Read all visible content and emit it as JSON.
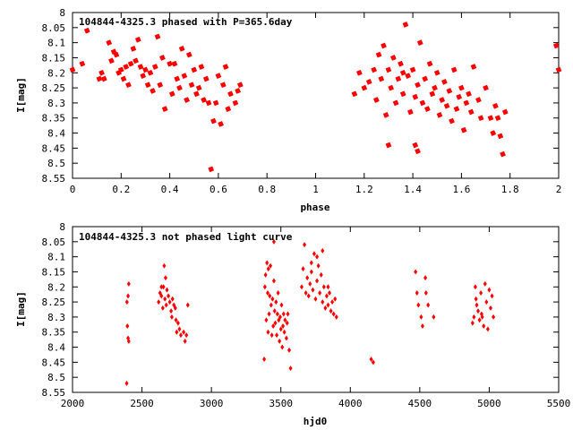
{
  "chart_data": [
    {
      "type": "scatter",
      "title": "104844-4325.3 phased with P=365.6day",
      "xlabel": "phase",
      "ylabel": "I[mag]",
      "xlim": [
        0,
        2
      ],
      "ylim": [
        8.0,
        8.55
      ],
      "y_inverted": true,
      "grid": false,
      "x_ticks": [
        0,
        0.2,
        0.4,
        0.6,
        0.8,
        1,
        1.2,
        1.4,
        1.6,
        1.8,
        2
      ],
      "x_tick_labels": [
        "0",
        "0.2",
        "0.4",
        "0.6",
        "0.8",
        "1",
        "1.2",
        "1.4",
        "1.6",
        "1.8",
        "2"
      ],
      "y_ticks": [
        8.0,
        8.05,
        8.1,
        8.15,
        8.2,
        8.25,
        8.3,
        8.35,
        8.4,
        8.45,
        8.5,
        8.55
      ],
      "y_tick_labels": [
        "8",
        "8.05",
        "8.1",
        "8.15",
        "8.2",
        "8.25",
        "8.3",
        "8.35",
        "8.4",
        "8.45",
        "8.5",
        "8.55"
      ],
      "marker_color": "#ff0000",
      "points": [
        [
          0.0,
          8.19
        ],
        [
          0.04,
          8.17
        ],
        [
          0.06,
          8.06
        ],
        [
          0.11,
          8.22
        ],
        [
          0.12,
          8.2
        ],
        [
          0.13,
          8.22
        ],
        [
          0.15,
          8.1
        ],
        [
          0.16,
          8.16
        ],
        [
          0.17,
          8.13
        ],
        [
          0.18,
          8.14
        ],
        [
          0.19,
          8.2
        ],
        [
          0.2,
          8.19
        ],
        [
          0.21,
          8.22
        ],
        [
          0.22,
          8.18
        ],
        [
          0.23,
          8.24
        ],
        [
          0.24,
          8.17
        ],
        [
          0.25,
          8.12
        ],
        [
          0.26,
          8.16
        ],
        [
          0.27,
          8.09
        ],
        [
          0.28,
          8.18
        ],
        [
          0.29,
          8.21
        ],
        [
          0.3,
          8.19
        ],
        [
          0.31,
          8.24
        ],
        [
          0.32,
          8.2
        ],
        [
          0.33,
          8.26
        ],
        [
          0.34,
          8.18
        ],
        [
          0.35,
          8.08
        ],
        [
          0.36,
          8.24
        ],
        [
          0.37,
          8.15
        ],
        [
          0.38,
          8.32
        ],
        [
          0.4,
          8.17
        ],
        [
          0.41,
          8.27
        ],
        [
          0.42,
          8.17
        ],
        [
          0.43,
          8.22
        ],
        [
          0.44,
          8.25
        ],
        [
          0.45,
          8.12
        ],
        [
          0.46,
          8.21
        ],
        [
          0.47,
          8.29
        ],
        [
          0.48,
          8.14
        ],
        [
          0.49,
          8.24
        ],
        [
          0.5,
          8.19
        ],
        [
          0.51,
          8.27
        ],
        [
          0.52,
          8.25
        ],
        [
          0.53,
          8.18
        ],
        [
          0.54,
          8.29
        ],
        [
          0.55,
          8.22
        ],
        [
          0.56,
          8.3
        ],
        [
          0.57,
          8.52
        ],
        [
          0.58,
          8.36
        ],
        [
          0.59,
          8.3
        ],
        [
          0.6,
          8.21
        ],
        [
          0.61,
          8.37
        ],
        [
          0.62,
          8.24
        ],
        [
          0.63,
          8.18
        ],
        [
          0.64,
          8.32
        ],
        [
          0.65,
          8.27
        ],
        [
          0.67,
          8.3
        ],
        [
          0.68,
          8.26
        ],
        [
          0.69,
          8.24
        ],
        [
          1.16,
          8.27
        ],
        [
          1.18,
          8.2
        ],
        [
          1.2,
          8.25
        ],
        [
          1.22,
          8.23
        ],
        [
          1.24,
          8.19
        ],
        [
          1.25,
          8.29
        ],
        [
          1.26,
          8.14
        ],
        [
          1.27,
          8.22
        ],
        [
          1.28,
          8.11
        ],
        [
          1.29,
          8.34
        ],
        [
          1.3,
          8.19
        ],
        [
          1.31,
          8.25
        ],
        [
          1.32,
          8.15
        ],
        [
          1.33,
          8.3
        ],
        [
          1.34,
          8.22
        ],
        [
          1.35,
          8.17
        ],
        [
          1.36,
          8.27
        ],
        [
          1.37,
          8.04
        ],
        [
          1.38,
          8.21
        ],
        [
          1.39,
          8.33
        ],
        [
          1.4,
          8.19
        ],
        [
          1.41,
          8.28
        ],
        [
          1.42,
          8.24
        ],
        [
          1.43,
          8.1
        ],
        [
          1.44,
          8.3
        ],
        [
          1.45,
          8.22
        ],
        [
          1.46,
          8.32
        ],
        [
          1.47,
          8.17
        ],
        [
          1.48,
          8.27
        ],
        [
          1.49,
          8.25
        ],
        [
          1.5,
          8.2
        ],
        [
          1.51,
          8.34
        ],
        [
          1.52,
          8.29
        ],
        [
          1.53,
          8.23
        ],
        [
          1.54,
          8.31
        ],
        [
          1.55,
          8.26
        ],
        [
          1.56,
          8.36
        ],
        [
          1.57,
          8.19
        ],
        [
          1.58,
          8.32
        ],
        [
          1.59,
          8.28
        ],
        [
          1.6,
          8.25
        ],
        [
          1.61,
          8.39
        ],
        [
          1.62,
          8.3
        ],
        [
          1.63,
          8.27
        ],
        [
          1.64,
          8.33
        ],
        [
          1.65,
          8.18
        ],
        [
          1.67,
          8.29
        ],
        [
          1.68,
          8.35
        ],
        [
          1.7,
          8.25
        ],
        [
          1.72,
          8.35
        ],
        [
          1.73,
          8.4
        ],
        [
          1.74,
          8.31
        ],
        [
          1.75,
          8.35
        ],
        [
          1.76,
          8.41
        ],
        [
          1.77,
          8.47
        ],
        [
          1.78,
          8.33
        ],
        [
          1.3,
          8.44
        ],
        [
          1.41,
          8.44
        ],
        [
          1.42,
          8.46
        ],
        [
          1.36,
          8.2
        ],
        [
          1.99,
          8.11
        ],
        [
          2.0,
          8.19
        ]
      ]
    },
    {
      "type": "scatter",
      "title": "104844-4325.3 not phased light curve",
      "xlabel": "hjd0",
      "ylabel": "I[mag]",
      "xlim": [
        2000,
        5500
      ],
      "ylim": [
        8.0,
        8.55
      ],
      "y_inverted": true,
      "grid": false,
      "x_ticks": [
        2000,
        2500,
        3000,
        3500,
        4000,
        4500,
        5000,
        5500
      ],
      "x_tick_labels": [
        "2000",
        "2500",
        "3000",
        "3500",
        "4000",
        "4500",
        "5000",
        "5500"
      ],
      "y_ticks": [
        8.0,
        8.05,
        8.1,
        8.15,
        8.2,
        8.25,
        8.3,
        8.35,
        8.4,
        8.45,
        8.5,
        8.55
      ],
      "y_tick_labels": [
        "8",
        "8.05",
        "8.1",
        "8.15",
        "8.2",
        "8.25",
        "8.3",
        "8.35",
        "8.4",
        "8.45",
        "8.5",
        "8.55"
      ],
      "marker_color": "#ff0000",
      "points": [
        [
          2390,
          8.52
        ],
        [
          2395,
          8.33
        ],
        [
          2400,
          8.37
        ],
        [
          2400,
          8.23
        ],
        [
          2405,
          8.19
        ],
        [
          2405,
          8.38
        ],
        [
          2392,
          8.25
        ],
        [
          2620,
          8.25
        ],
        [
          2630,
          8.22
        ],
        [
          2640,
          8.2
        ],
        [
          2650,
          8.27
        ],
        [
          2660,
          8.13
        ],
        [
          2665,
          8.24
        ],
        [
          2670,
          8.17
        ],
        [
          2675,
          8.26
        ],
        [
          2680,
          8.21
        ],
        [
          2690,
          8.23
        ],
        [
          2700,
          8.25
        ],
        [
          2710,
          8.28
        ],
        [
          2715,
          8.3
        ],
        [
          2720,
          8.24
        ],
        [
          2730,
          8.26
        ],
        [
          2740,
          8.27
        ],
        [
          2745,
          8.31
        ],
        [
          2750,
          8.35
        ],
        [
          2760,
          8.32
        ],
        [
          2770,
          8.34
        ],
        [
          2780,
          8.36
        ],
        [
          2800,
          8.35
        ],
        [
          2810,
          8.38
        ],
        [
          2820,
          8.36
        ],
        [
          2830,
          8.26
        ],
        [
          2640,
          8.23
        ],
        [
          2655,
          8.2
        ],
        [
          3380,
          8.44
        ],
        [
          3385,
          8.2
        ],
        [
          3390,
          8.16
        ],
        [
          3400,
          8.12
        ],
        [
          3405,
          8.22
        ],
        [
          3410,
          8.14
        ],
        [
          3415,
          8.29
        ],
        [
          3420,
          8.23
        ],
        [
          3425,
          8.13
        ],
        [
          3430,
          8.26
        ],
        [
          3435,
          8.36
        ],
        [
          3440,
          8.24
        ],
        [
          3445,
          8.33
        ],
        [
          3450,
          8.18
        ],
        [
          3455,
          8.28
        ],
        [
          3460,
          8.32
        ],
        [
          3465,
          8.25
        ],
        [
          3470,
          8.36
        ],
        [
          3475,
          8.29
        ],
        [
          3480,
          8.22
        ],
        [
          3485,
          8.31
        ],
        [
          3490,
          8.38
        ],
        [
          3495,
          8.3
        ],
        [
          3500,
          8.34
        ],
        [
          3505,
          8.26
        ],
        [
          3510,
          8.4
        ],
        [
          3515,
          8.33
        ],
        [
          3520,
          8.29
        ],
        [
          3525,
          8.35
        ],
        [
          3530,
          8.31
        ],
        [
          3540,
          8.37
        ],
        [
          3545,
          8.32
        ],
        [
          3550,
          8.29
        ],
        [
          3560,
          8.41
        ],
        [
          3570,
          8.47
        ],
        [
          3450,
          8.05
        ],
        [
          3395,
          8.31
        ],
        [
          3408,
          8.35
        ],
        [
          3650,
          8.2
        ],
        [
          3660,
          8.14
        ],
        [
          3670,
          8.06
        ],
        [
          3680,
          8.22
        ],
        [
          3690,
          8.17
        ],
        [
          3700,
          8.23
        ],
        [
          3710,
          8.19
        ],
        [
          3720,
          8.12
        ],
        [
          3730,
          8.21
        ],
        [
          3740,
          8.09
        ],
        [
          3750,
          8.24
        ],
        [
          3760,
          8.18
        ],
        [
          3770,
          8.13
        ],
        [
          3780,
          8.22
        ],
        [
          3790,
          8.16
        ],
        [
          3800,
          8.25
        ],
        [
          3810,
          8.2
        ],
        [
          3820,
          8.27
        ],
        [
          3830,
          8.23
        ],
        [
          3840,
          8.26
        ],
        [
          3850,
          8.22
        ],
        [
          3860,
          8.28
        ],
        [
          3870,
          8.25
        ],
        [
          3880,
          8.29
        ],
        [
          3890,
          8.24
        ],
        [
          3900,
          8.3
        ],
        [
          3720,
          8.15
        ],
        [
          3760,
          8.1
        ],
        [
          3800,
          8.08
        ],
        [
          3840,
          8.2
        ],
        [
          4150,
          8.44
        ],
        [
          4165,
          8.45
        ],
        [
          4470,
          8.15
        ],
        [
          4480,
          8.22
        ],
        [
          4490,
          8.26
        ],
        [
          4510,
          8.3
        ],
        [
          4520,
          8.33
        ],
        [
          4540,
          8.17
        ],
        [
          4545,
          8.22
        ],
        [
          4560,
          8.26
        ],
        [
          4600,
          8.3
        ],
        [
          4880,
          8.32
        ],
        [
          4890,
          8.3
        ],
        [
          4900,
          8.2
        ],
        [
          4910,
          8.26
        ],
        [
          4920,
          8.28
        ],
        [
          4930,
          8.31
        ],
        [
          4940,
          8.22
        ],
        [
          4950,
          8.3
        ],
        [
          4960,
          8.33
        ],
        [
          4970,
          8.19
        ],
        [
          4980,
          8.25
        ],
        [
          4990,
          8.34
        ],
        [
          5000,
          8.21
        ],
        [
          5010,
          8.27
        ],
        [
          5020,
          8.23
        ],
        [
          5030,
          8.3
        ],
        [
          4945,
          8.29
        ],
        [
          4905,
          8.24
        ]
      ]
    }
  ]
}
